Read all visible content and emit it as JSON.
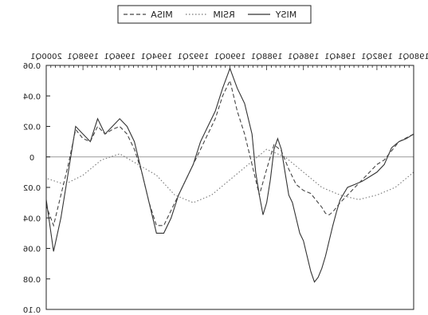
{
  "chart_data": {
    "type": "line",
    "orientation": "mirrored",
    "legend_placement": "top-center",
    "x_tick_labels": [
      "1980Q1",
      "1982Q1",
      "1984Q1",
      "1986Q1",
      "1988Q1",
      "1990Q1",
      "1992Q1",
      "1994Q1",
      "1996Q1",
      "1998Q1",
      "2000Q1"
    ],
    "y_ticks": [
      {
        "value": 0.1,
        "label": "0.10"
      },
      {
        "value": 0.08,
        "label": "0.08"
      },
      {
        "value": 0.06,
        "label": "0.06"
      },
      {
        "value": 0.04,
        "label": "0.04"
      },
      {
        "value": 0.02,
        "label": "0.02"
      },
      {
        "value": 0,
        "label": "0"
      },
      {
        "value": -0.02,
        "label": "0.02"
      },
      {
        "value": -0.04,
        "label": "0.04"
      },
      {
        "value": -0.06,
        "label": "0.06"
      }
    ],
    "ylim": [
      -0.06,
      0.1
    ],
    "xlim": [
      0,
      100
    ],
    "series": [
      {
        "name": "MISY",
        "style": "solid",
        "color": "#333333",
        "x": [
          0,
          2,
          4,
          6,
          8,
          10,
          12,
          14,
          16,
          18,
          20,
          21,
          22,
          23,
          24,
          25,
          26,
          27,
          28,
          29,
          30,
          31,
          32,
          33,
          34,
          35,
          36,
          37,
          38,
          39,
          40,
          41,
          42,
          43,
          44,
          46,
          47,
          48,
          50,
          52,
          54,
          56,
          58,
          60,
          62,
          64,
          66,
          68,
          70,
          72,
          74,
          76,
          78,
          80,
          82,
          84,
          86,
          88,
          90,
          92,
          94,
          96,
          98,
          100
        ],
        "y": [
          -0.015,
          -0.012,
          -0.01,
          -0.006,
          0.005,
          0.01,
          0.013,
          0.016,
          0.018,
          0.02,
          0.028,
          0.036,
          0.045,
          0.055,
          0.065,
          0.073,
          0.079,
          0.082,
          0.075,
          0.065,
          0.055,
          0.05,
          0.04,
          0.03,
          0.025,
          0.01,
          -0.005,
          -0.012,
          -0.005,
          0.015,
          0.03,
          0.038,
          0.025,
          0.01,
          -0.015,
          -0.035,
          -0.04,
          -0.045,
          -0.058,
          -0.045,
          -0.03,
          -0.02,
          -0.01,
          0.005,
          0.015,
          0.025,
          0.04,
          0.05,
          0.05,
          0.03,
          0.01,
          -0.01,
          -0.02,
          -0.025,
          -0.02,
          -0.015,
          -0.025,
          -0.01,
          -0.015,
          -0.02,
          0.01,
          0.04,
          0.062,
          0.028
        ]
      },
      {
        "name": "RSIM",
        "style": "dotted",
        "color": "#777777",
        "x": [
          0,
          5,
          10,
          15,
          20,
          25,
          30,
          35,
          40,
          45,
          50,
          55,
          60,
          65,
          70,
          75,
          80,
          85,
          90,
          95,
          100
        ],
        "y": [
          0.01,
          0.02,
          0.025,
          0.028,
          0.025,
          0.02,
          0.01,
          0.0,
          -0.005,
          0.005,
          0.015,
          0.025,
          0.03,
          0.025,
          0.012,
          0.005,
          -0.002,
          0.002,
          0.012,
          0.018,
          0.014
        ]
      },
      {
        "name": "MISA",
        "style": "dashed",
        "color": "#444444",
        "x": [
          0,
          4,
          8,
          10,
          12,
          14,
          16,
          18,
          20,
          21,
          22,
          23,
          24,
          25,
          26,
          27,
          28,
          30,
          32,
          34,
          36,
          38,
          40,
          42,
          44,
          46,
          48,
          50,
          52,
          54,
          56,
          58,
          60,
          62,
          64,
          66,
          68,
          70,
          72,
          74,
          76,
          78,
          80,
          82,
          84,
          86,
          88,
          90,
          92,
          94,
          96,
          98,
          100
        ],
        "y": [
          -0.015,
          -0.01,
          0.002,
          0.005,
          0.01,
          0.015,
          0.02,
          0.025,
          0.03,
          0.033,
          0.036,
          0.038,
          0.037,
          0.033,
          0.03,
          0.027,
          0.024,
          0.022,
          0.018,
          0.008,
          -0.004,
          -0.008,
          0.008,
          0.025,
          0.005,
          -0.015,
          -0.03,
          -0.05,
          -0.04,
          -0.025,
          -0.015,
          -0.005,
          0.005,
          0.015,
          0.025,
          0.035,
          0.045,
          0.045,
          0.03,
          0.01,
          -0.005,
          -0.015,
          -0.02,
          -0.018,
          -0.015,
          -0.02,
          -0.01,
          -0.012,
          -0.018,
          0.005,
          0.025,
          0.045,
          0.032
        ]
      }
    ]
  }
}
